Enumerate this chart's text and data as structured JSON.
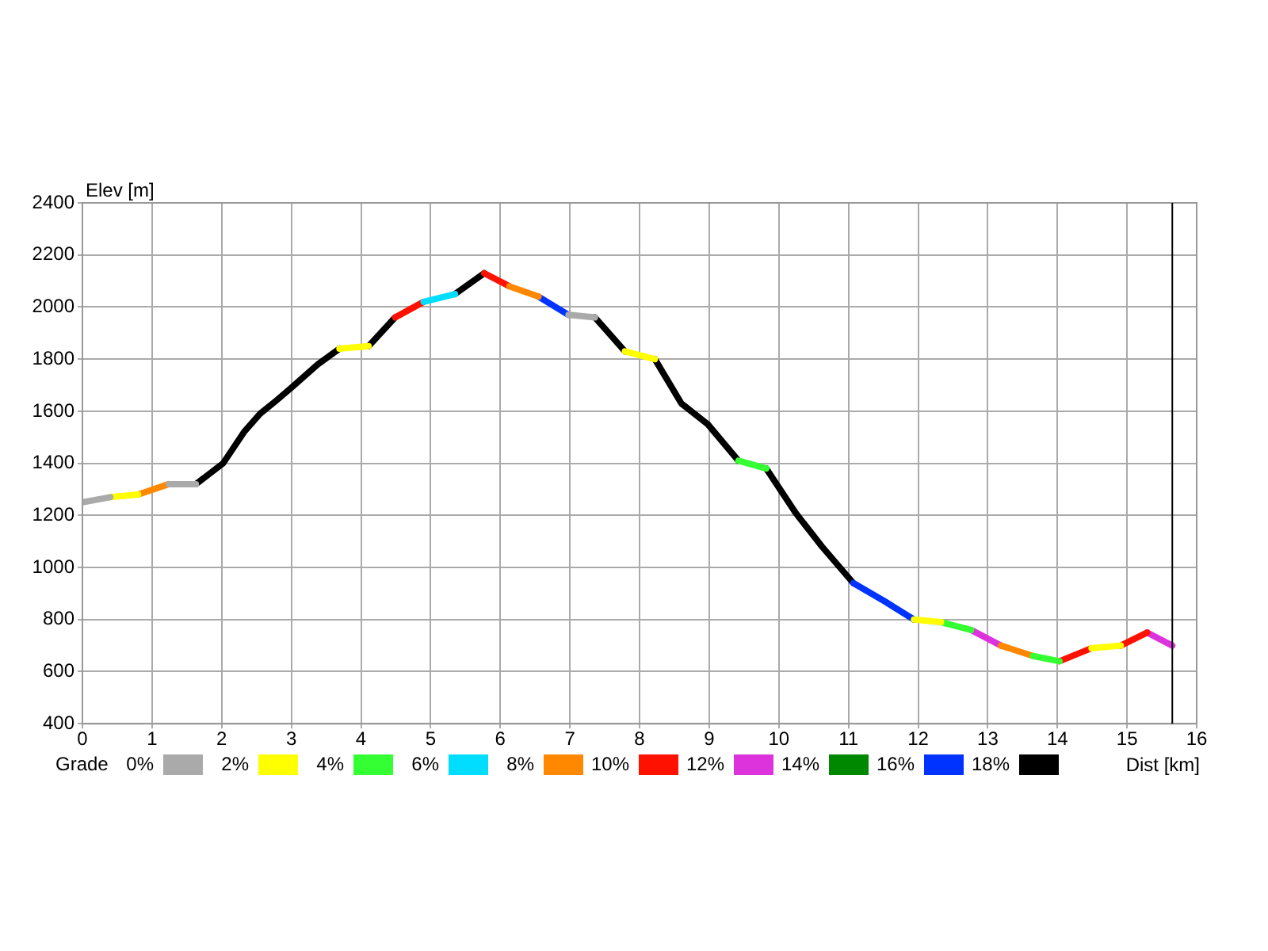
{
  "chart_data": {
    "type": "line",
    "xlabel": "Dist [km]",
    "ylabel": "Elev [m]",
    "legend_title": "Grade",
    "series": [
      {
        "name": "0%",
        "color": "#aaaaaa",
        "x": [
          0,
          0.4,
          null,
          1.24,
          1.63,
          null,
          6.98,
          7.36
        ],
        "values": [
          1250,
          1270,
          null,
          1320,
          1320,
          null,
          1970,
          1960
        ]
      },
      {
        "name": "2%",
        "color": "#ffff00",
        "x": [
          0.4,
          0.8,
          null,
          3.69,
          4.11,
          null,
          7.79,
          8.22,
          null,
          11.94,
          12.33,
          null,
          14.49,
          14.91
        ],
        "values": [
          1270,
          1280,
          null,
          1840,
          1850,
          null,
          1830,
          1800,
          null,
          800,
          790,
          null,
          690,
          700
        ]
      },
      {
        "name": "4%",
        "color": "#33ff33",
        "x": [
          9.42,
          9.82,
          null,
          12.33,
          12.76,
          null,
          13.65,
          14.03
        ],
        "values": [
          1410,
          1380,
          null,
          790,
          760,
          null,
          660,
          640
        ]
      },
      {
        "name": "6%",
        "color": "#00ddff",
        "x": [
          4.9,
          5.35
        ],
        "values": [
          2020,
          2050
        ]
      },
      {
        "name": "8%",
        "color": "#ff8800",
        "x": [
          0.8,
          1.24,
          null,
          6.13,
          6.55,
          null,
          13.19,
          13.65
        ],
        "values": [
          1280,
          1320,
          null,
          2080,
          2040,
          null,
          700,
          660
        ]
      },
      {
        "name": "10%",
        "color": "#ff1100",
        "x": [
          4.49,
          4.9,
          null,
          5.77,
          6.13,
          null,
          14.03,
          14.49,
          null,
          14.91,
          15.29
        ],
        "values": [
          1960,
          2020,
          null,
          2130,
          2080,
          null,
          640,
          690,
          null,
          700,
          750
        ]
      },
      {
        "name": "12%",
        "color": "#dd33dd",
        "x": [
          12.76,
          13.19,
          null,
          15.29,
          15.65
        ],
        "values": [
          760,
          700,
          null,
          750,
          700
        ]
      },
      {
        "name": "14%",
        "color": "#008800"
      },
      {
        "name": "16%",
        "color": "#0033ff",
        "x": [
          6.55,
          6.98,
          null,
          11.07,
          11.52,
          11.94
        ],
        "values": [
          2040,
          1970,
          null,
          940,
          870,
          800
        ]
      },
      {
        "name": "18%",
        "color": "#000000",
        "x": [
          1.63,
          2.02,
          2.32,
          2.55,
          2.78,
          3.0,
          3.38,
          3.69,
          null,
          4.11,
          4.49,
          null,
          5.35,
          5.77,
          null,
          7.36,
          7.79,
          null,
          8.22,
          8.6,
          8.98,
          9.42,
          null,
          9.82,
          10.24,
          10.62,
          11.07
        ],
        "values": [
          1320,
          1400,
          1520,
          1590,
          1640,
          1690,
          1780,
          1840,
          null,
          1850,
          1960,
          null,
          2050,
          2130,
          null,
          1960,
          1830,
          null,
          1800,
          1630,
          1550,
          1410,
          null,
          1380,
          1210,
          1080,
          940
        ]
      }
    ],
    "xlim": [
      0,
      16
    ],
    "xticks": [
      0,
      1,
      2,
      3,
      4,
      5,
      6,
      7,
      8,
      9,
      10,
      11,
      12,
      13,
      14,
      15,
      16
    ],
    "ylim": [
      400,
      2400
    ],
    "yticks": [
      400,
      600,
      800,
      1000,
      1200,
      1400,
      1600,
      1800,
      2000,
      2200,
      2400
    ],
    "ref_lines": [
      {
        "axis": "x",
        "value": 15.65,
        "color": "#000000"
      }
    ],
    "grid": true,
    "legend": "bottom",
    "marker": "none",
    "line_style": "solid"
  }
}
